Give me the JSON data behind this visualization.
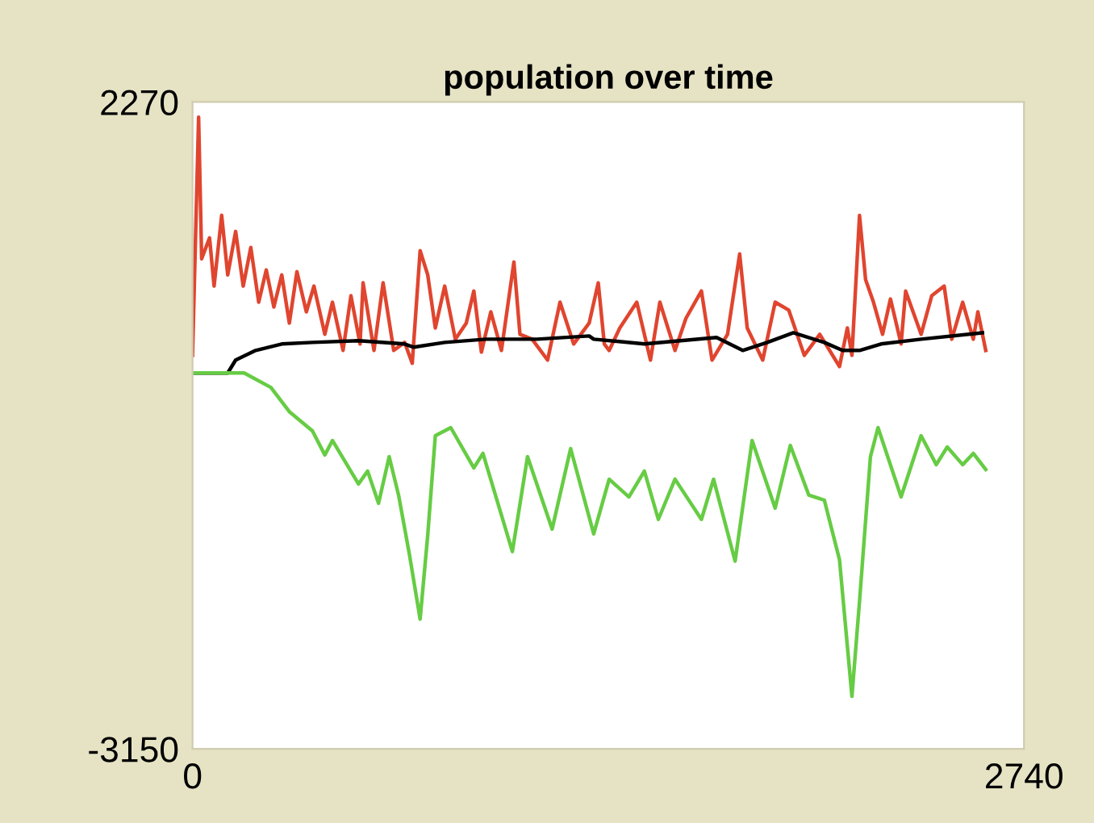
{
  "chart_data": {
    "type": "line",
    "title": "population over time",
    "xlim": [
      0,
      2740
    ],
    "ylim": [
      -3150,
      2270
    ],
    "xticks": [
      0,
      2740
    ],
    "yticks": [
      -3150,
      2270
    ],
    "series": [
      {
        "color": "#e0452f",
        "x": [
          0,
          20,
          30,
          56,
          71,
          96,
          116,
          142,
          167,
          192,
          218,
          243,
          268,
          294,
          319,
          344,
          375,
          400,
          436,
          461,
          496,
          522,
          552,
          562,
          598,
          628,
          663,
          699,
          724,
          750,
          775,
          800,
          831,
          866,
          902,
          927,
          952,
          983,
          1018,
          1059,
          1079,
          1119,
          1170,
          1211,
          1256,
          1307,
          1337,
          1357,
          1373,
          1408,
          1464,
          1509,
          1540,
          1590,
          1626,
          1677,
          1712,
          1763,
          1803,
          1828,
          1879,
          1920,
          1965,
          2016,
          2067,
          2132,
          2158,
          2173,
          2198,
          2218,
          2244,
          2274,
          2300,
          2335,
          2350,
          2401,
          2436,
          2477,
          2502,
          2538,
          2573,
          2588,
          2614
        ],
        "values": [
          148,
          2143,
          957,
          1132,
          728,
          1321,
          822,
          1186,
          728,
          1051,
          593,
          863,
          553,
          822,
          418,
          849,
          512,
          728,
          324,
          593,
          189,
          647,
          243,
          755,
          189,
          755,
          189,
          256,
          81,
          1024,
          822,
          377,
          728,
          283,
          418,
          687,
          175,
          512,
          189,
          930,
          324,
          283,
          108,
          593,
          243,
          418,
          755,
          243,
          189,
          377,
          593,
          108,
          593,
          189,
          458,
          687,
          108,
          324,
          997,
          377,
          108,
          593,
          526,
          148,
          324,
          54,
          377,
          148,
          1321,
          782,
          593,
          324,
          620,
          243,
          687,
          324,
          647,
          728,
          283,
          593,
          283,
          512,
          189
        ]
      },
      {
        "color": "#000000",
        "x": [
          0,
          116,
          142,
          208,
          294,
          395,
          547,
          699,
          729,
          831,
          967,
          1135,
          1307,
          1322,
          1489,
          1727,
          1813,
          1894,
          1980,
          2082,
          2142,
          2198,
          2269,
          2401,
          2603
        ],
        "values": [
          0,
          0,
          108,
          189,
          243,
          256,
          270,
          243,
          216,
          256,
          283,
          283,
          310,
          283,
          243,
          297,
          189,
          256,
          337,
          256,
          189,
          189,
          243,
          283,
          337
        ]
      },
      {
        "color": "#66cc44",
        "x": [
          0,
          170,
          258,
          319,
          395,
          436,
          461,
          547,
          577,
          613,
          648,
          679,
          714,
          750,
          775,
          800,
          851,
          927,
          957,
          1054,
          1104,
          1185,
          1246,
          1322,
          1373,
          1438,
          1489,
          1535,
          1590,
          1677,
          1717,
          1788,
          1844,
          1920,
          1970,
          2031,
          2082,
          2132,
          2173,
          2198,
          2234,
          2259,
          2335,
          2401,
          2451,
          2487,
          2538,
          2573,
          2614
        ],
        "values": [
          0,
          0,
          -121,
          -324,
          -485,
          -687,
          -566,
          -930,
          -822,
          -1092,
          -701,
          -1024,
          -1510,
          -2062,
          -1361,
          -526,
          -458,
          -795,
          -674,
          -1496,
          -701,
          -1308,
          -634,
          -1348,
          -890,
          -1038,
          -822,
          -1227,
          -890,
          -1227,
          -890,
          -1577,
          -566,
          -1132,
          -607,
          -1024,
          -1065,
          -1564,
          -2709,
          -1914,
          -701,
          -458,
          -1038,
          -526,
          -768,
          -620,
          -768,
          -674,
          -809
        ]
      }
    ]
  }
}
